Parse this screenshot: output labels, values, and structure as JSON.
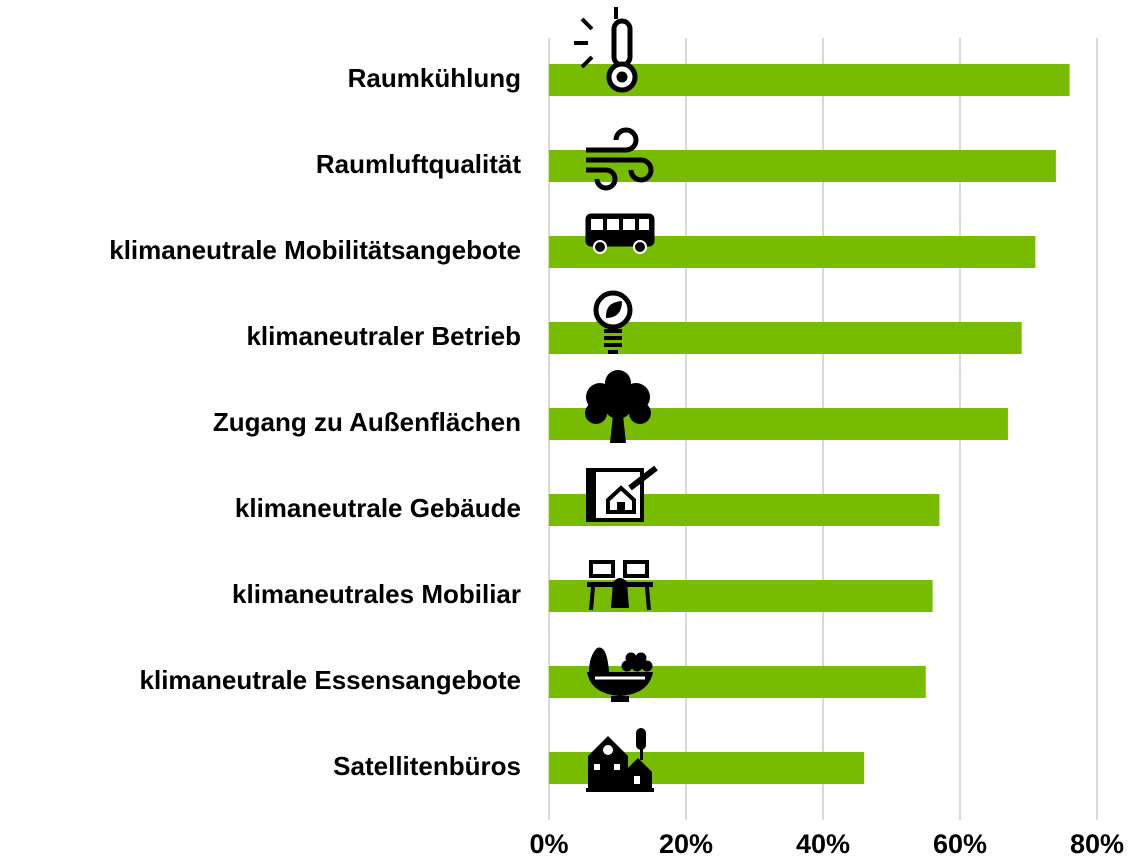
{
  "chart_data": {
    "type": "hbar",
    "categories": [
      "Raumkühlung",
      "Raumluftqualität",
      "klimaneutrale Mobilitätsangebote",
      "klimaneutraler Betrieb",
      "Zugang zu Außenflächen",
      "klimaneutrale Gebäude",
      "klimaneutrales Mobiliar",
      "klimaneutrale Essensangebote",
      "Satellitenbüros"
    ],
    "values": [
      76,
      74,
      71,
      69,
      67,
      57,
      56,
      55,
      46
    ],
    "color": "#77bc00",
    "xlim": [
      0,
      80
    ],
    "xticks": [
      {
        "value": 0,
        "label": "0%"
      },
      {
        "value": 20,
        "label": "20%"
      },
      {
        "value": 40,
        "label": "40%"
      },
      {
        "value": 60,
        "label": "60%"
      },
      {
        "value": 80,
        "label": "80%"
      }
    ],
    "grid": true
  }
}
